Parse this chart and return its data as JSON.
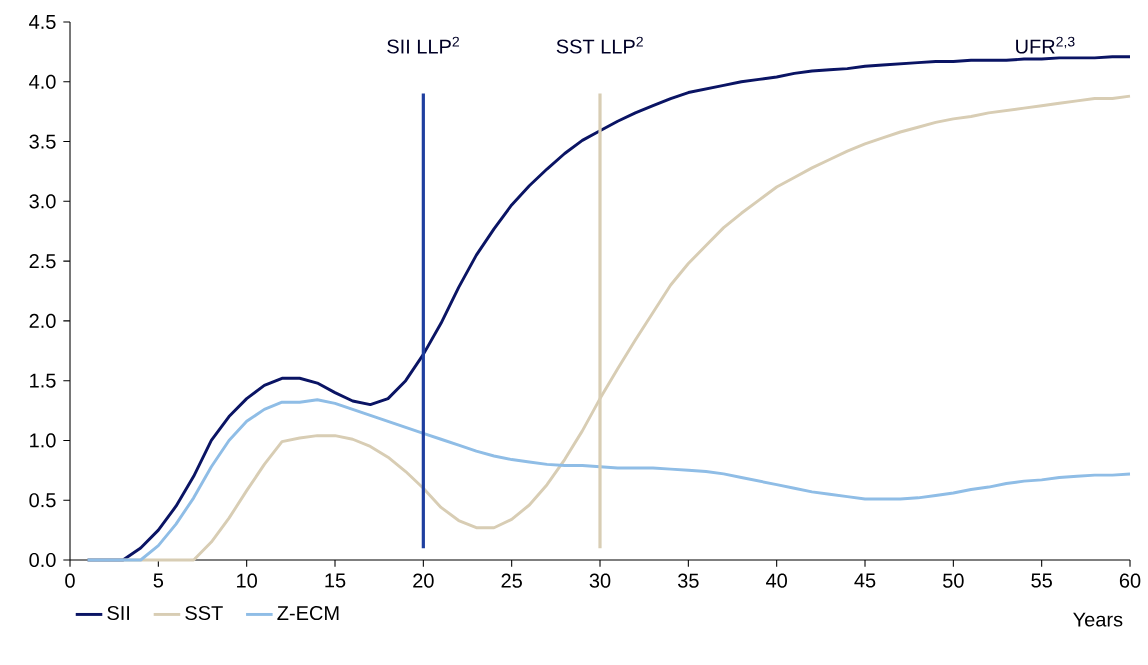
{
  "chart_data": {
    "type": "line",
    "xlabel": "Years",
    "x": [
      1,
      2,
      3,
      4,
      5,
      6,
      7,
      8,
      9,
      10,
      11,
      12,
      13,
      14,
      15,
      16,
      17,
      18,
      19,
      20,
      21,
      22,
      23,
      24,
      25,
      26,
      27,
      28,
      29,
      30,
      31,
      32,
      33,
      34,
      35,
      36,
      37,
      38,
      39,
      40,
      41,
      42,
      43,
      44,
      45,
      46,
      47,
      48,
      49,
      50,
      51,
      52,
      53,
      54,
      55,
      56,
      57,
      58,
      59,
      60
    ],
    "series": [
      {
        "name": "SII",
        "color": "#0a1464",
        "values": [
          0,
          0,
          0,
          0.1,
          0.25,
          0.45,
          0.7,
          1.0,
          1.2,
          1.35,
          1.46,
          1.52,
          1.52,
          1.48,
          1.4,
          1.33,
          1.3,
          1.35,
          1.5,
          1.72,
          1.98,
          2.28,
          2.55,
          2.77,
          2.97,
          3.13,
          3.27,
          3.4,
          3.51,
          3.59,
          3.67,
          3.74,
          3.8,
          3.86,
          3.91,
          3.94,
          3.97,
          4.0,
          4.02,
          4.04,
          4.07,
          4.09,
          4.1,
          4.11,
          4.13,
          4.14,
          4.15,
          4.16,
          4.17,
          4.17,
          4.18,
          4.18,
          4.18,
          4.19,
          4.19,
          4.2,
          4.2,
          4.2,
          4.21,
          4.21
        ]
      },
      {
        "name": "SST",
        "color": "#d8cdb4",
        "values": [
          0,
          0,
          0,
          0,
          0,
          0,
          0,
          0.15,
          0.35,
          0.58,
          0.8,
          0.99,
          1.02,
          1.04,
          1.04,
          1.01,
          0.95,
          0.86,
          0.74,
          0.6,
          0.44,
          0.33,
          0.27,
          0.27,
          0.34,
          0.46,
          0.63,
          0.84,
          1.08,
          1.35,
          1.6,
          1.84,
          2.07,
          2.3,
          2.48,
          2.63,
          2.78,
          2.9,
          3.01,
          3.12,
          3.2,
          3.28,
          3.35,
          3.42,
          3.48,
          3.53,
          3.58,
          3.62,
          3.66,
          3.69,
          3.71,
          3.74,
          3.76,
          3.78,
          3.8,
          3.82,
          3.84,
          3.86,
          3.86,
          3.88
        ]
      },
      {
        "name": "Z-ECM",
        "color": "#8fbde6",
        "values": [
          0,
          0,
          0,
          0,
          0.12,
          0.3,
          0.52,
          0.78,
          1.0,
          1.16,
          1.26,
          1.32,
          1.32,
          1.34,
          1.31,
          1.26,
          1.21,
          1.16,
          1.11,
          1.06,
          1.01,
          0.96,
          0.91,
          0.87,
          0.84,
          0.82,
          0.8,
          0.79,
          0.79,
          0.78,
          0.77,
          0.77,
          0.77,
          0.76,
          0.75,
          0.74,
          0.72,
          0.69,
          0.66,
          0.63,
          0.6,
          0.57,
          0.55,
          0.53,
          0.51,
          0.51,
          0.51,
          0.52,
          0.54,
          0.56,
          0.59,
          0.61,
          0.64,
          0.66,
          0.67,
          0.69,
          0.7,
          0.71,
          0.71,
          0.72
        ]
      }
    ],
    "ref_lines": [
      {
        "axis": "x",
        "value": 20,
        "label": "SII LLP$^{2}$",
        "color": "#1f3f9f"
      },
      {
        "axis": "x",
        "value": 30,
        "label": "SST LLP$^{2}$",
        "color": "#d8cdb4"
      }
    ],
    "annotations": [
      "UFR$^{2,3}$"
    ],
    "xlim": [
      0,
      60
    ],
    "xticks": [
      0,
      5,
      10,
      15,
      20,
      25,
      30,
      35,
      40,
      45,
      50,
      55,
      60
    ],
    "ylim": [
      0,
      4.5
    ],
    "yticks": [
      {
        "value": 0,
        "label": "0.0"
      },
      {
        "value": 0.5,
        "label": "0.5"
      },
      {
        "value": 1,
        "label": "1.0"
      },
      {
        "value": 1.5,
        "label": "1.5"
      },
      {
        "value": 2,
        "label": "2.0"
      },
      {
        "value": 2.5,
        "label": "2.5"
      },
      {
        "value": 3,
        "label": "3.0"
      },
      {
        "value": 3.5,
        "label": "3.5"
      },
      {
        "value": 4,
        "label": "4.0"
      },
      {
        "value": 4.5,
        "label": "4.5"
      }
    ],
    "legend": "bottom left",
    "marker": "none",
    "line_style": "solid"
  }
}
